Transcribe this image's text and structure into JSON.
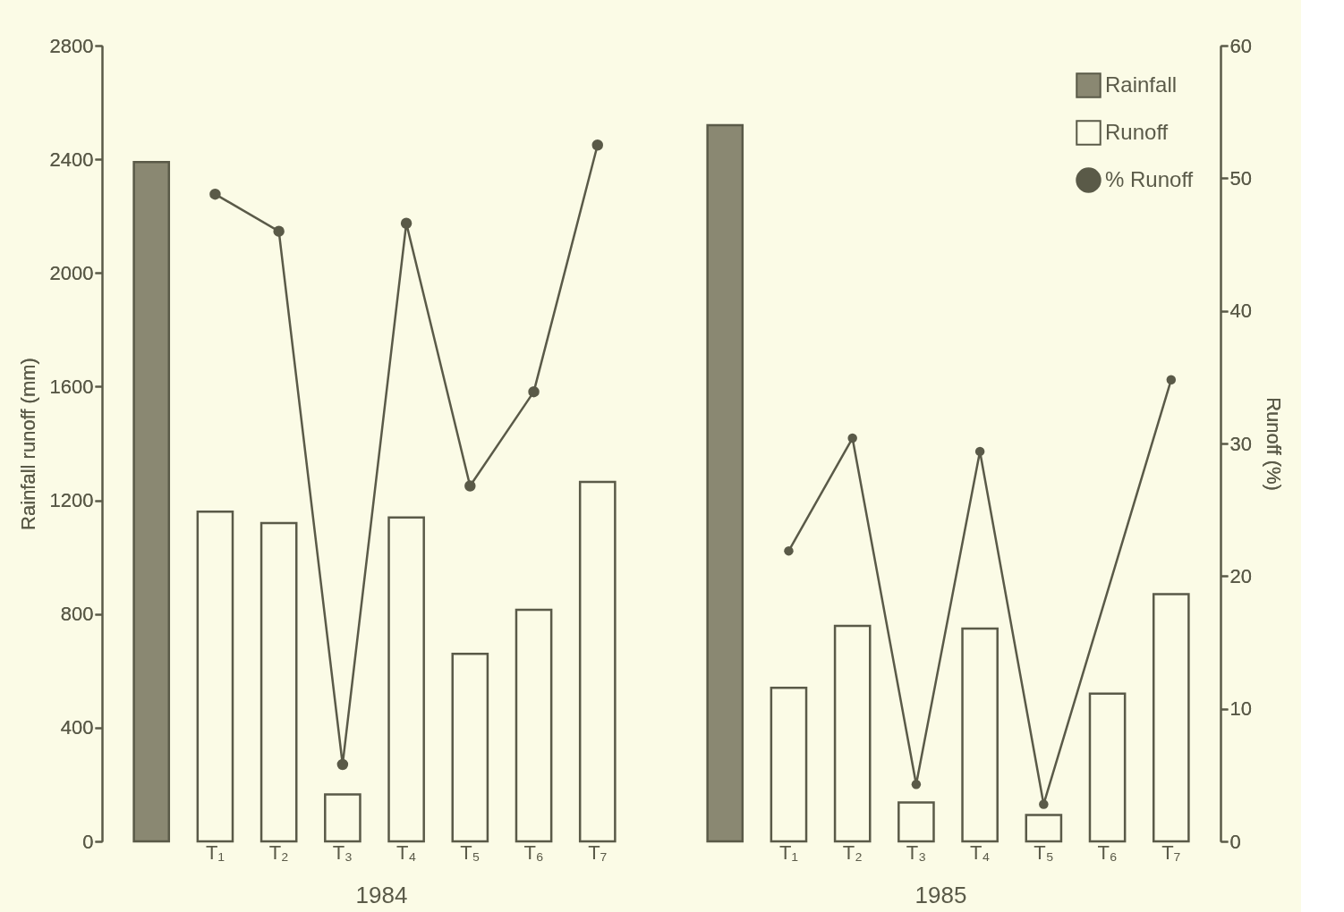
{
  "chart_data": {
    "type": "bar",
    "ylabel": "Rainfall runoff (mm)",
    "y2label": "Runoff (%)",
    "categories": [
      null,
      "T₁",
      "T₂",
      "T₃",
      "T₄",
      "T₅",
      "T₆",
      "T₇",
      null,
      null,
      "T₁",
      "T₂",
      "T₃",
      "T₄",
      "T₅",
      "T₆",
      "T₇"
    ],
    "series": [
      {
        "name": "Rainfall",
        "color": "#8a8872",
        "values": [
          2390,
          null,
          null,
          null,
          null,
          null,
          null,
          null,
          null,
          2520,
          null,
          null,
          null,
          null,
          null,
          null,
          null
        ]
      },
      {
        "name": "Runoff",
        "color": "#fbfbe6",
        "values": [
          null,
          1160,
          1120,
          165,
          1140,
          660,
          815,
          1265,
          null,
          null,
          540,
          758,
          137,
          749,
          93,
          520,
          870
        ]
      },
      {
        "name": "% Runoff",
        "type": "line",
        "axis": "y2",
        "marker": "circle",
        "color": "#5a5a48",
        "values": [
          null,
          48.8,
          46.0,
          5.8,
          46.6,
          26.8,
          33.9,
          52.5,
          null,
          null,
          null,
          null,
          null,
          null,
          null,
          null,
          null
        ]
      },
      {
        "type": "line",
        "axis": "y2",
        "marker": "circle",
        "color": "#5a5a48",
        "values": [
          null,
          null,
          null,
          null,
          null,
          null,
          null,
          null,
          null,
          null,
          21.9,
          30.4,
          4.3,
          29.4,
          2.8,
          null,
          34.8
        ]
      }
    ],
    "ylim": [
      0,
      2800
    ],
    "yticks": [
      0,
      400,
      800,
      1200,
      1600,
      2000,
      2400,
      2800
    ],
    "y2lim": [
      0,
      60
    ],
    "y2ticks": [
      0,
      10,
      20,
      30,
      40,
      50,
      60
    ],
    "annotations": [
      "1984",
      "1985"
    ],
    "legend": "top right",
    "grid": false
  }
}
